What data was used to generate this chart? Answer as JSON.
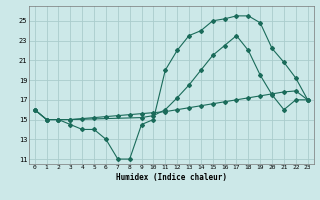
{
  "xlabel": "Humidex (Indice chaleur)",
  "bg_color": "#cce8e8",
  "grid_color": "#aacccc",
  "line_color": "#1a6b5a",
  "xlim": [
    -0.5,
    23.5
  ],
  "ylim": [
    10.5,
    26.5
  ],
  "xticks": [
    0,
    1,
    2,
    3,
    4,
    5,
    6,
    7,
    8,
    9,
    10,
    11,
    12,
    13,
    14,
    15,
    16,
    17,
    18,
    19,
    20,
    21,
    22,
    23
  ],
  "yticks": [
    11,
    13,
    15,
    17,
    19,
    21,
    23,
    25
  ],
  "line1_x": [
    0,
    1,
    2,
    3,
    4,
    5,
    6,
    7,
    8,
    9,
    10,
    11,
    12,
    13,
    14,
    15,
    16,
    17,
    18,
    19,
    20,
    21,
    22,
    23
  ],
  "line1_y": [
    16,
    15,
    15,
    14.5,
    14,
    14,
    13,
    11,
    11,
    14.5,
    15,
    20,
    22,
    23.5,
    24,
    25,
    25.2,
    25.5,
    25.5,
    24.8,
    22.2,
    20.8,
    19.2,
    17
  ],
  "line2_x": [
    0,
    1,
    2,
    3,
    4,
    5,
    6,
    7,
    8,
    9,
    10,
    11,
    12,
    13,
    14,
    15,
    16,
    17,
    18,
    19,
    20,
    21,
    22,
    23
  ],
  "line2_y": [
    16,
    15,
    15,
    15,
    15.1,
    15.2,
    15.3,
    15.4,
    15.5,
    15.6,
    15.7,
    15.8,
    16.0,
    16.2,
    16.4,
    16.6,
    16.8,
    17.0,
    17.2,
    17.4,
    17.6,
    17.8,
    17.9,
    17
  ],
  "line3_x": [
    0,
    1,
    2,
    3,
    9,
    10,
    11,
    12,
    13,
    14,
    15,
    16,
    17,
    18,
    19,
    20,
    21,
    22,
    23
  ],
  "line3_y": [
    16,
    15,
    15,
    15,
    15.2,
    15.4,
    16.0,
    17.2,
    18.5,
    20.0,
    21.5,
    22.5,
    23.5,
    22.0,
    19.5,
    17.5,
    16.0,
    17.0,
    17.0
  ]
}
